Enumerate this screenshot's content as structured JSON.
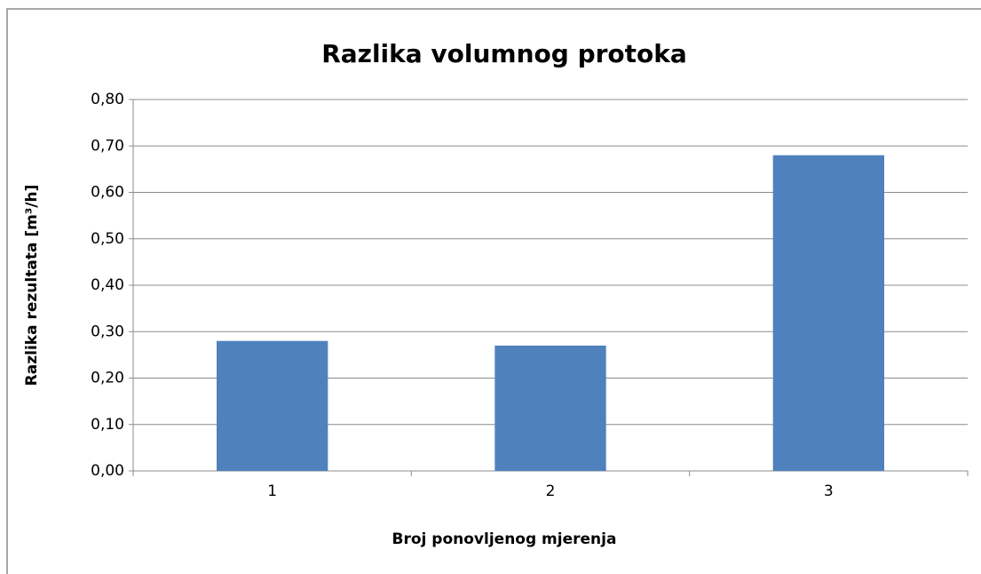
{
  "chart_data": {
    "type": "bar",
    "title": "Razlika volumnog protoka",
    "x_label": "Broj ponovljenog mjerenja",
    "y_label": "Razlika rezultata [m³/h]",
    "categories": [
      "1",
      "2",
      "3"
    ],
    "values": [
      0.28,
      0.27,
      0.68
    ],
    "color": "#4f81bd",
    "ylim": [
      0,
      0.8
    ],
    "yticks": [
      {
        "value": 0,
        "label": "0,00"
      },
      {
        "value": 0.1,
        "label": "0,10"
      },
      {
        "value": 0.2,
        "label": "0,20"
      },
      {
        "value": 0.3,
        "label": "0,30"
      },
      {
        "value": 0.4,
        "label": "0,40"
      },
      {
        "value": 0.5,
        "label": "0,50"
      },
      {
        "value": 0.6,
        "label": "0,60"
      },
      {
        "value": 0.7,
        "label": "0,70"
      },
      {
        "value": 0.8,
        "label": "0,80"
      }
    ],
    "grid": true
  }
}
